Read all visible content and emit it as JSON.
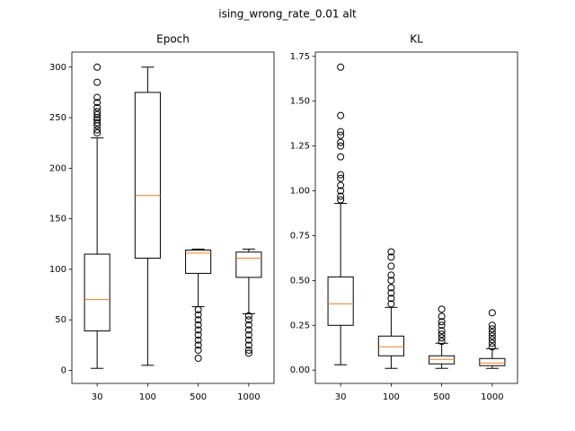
{
  "title": "ising_wrong_rate_0.01 alt",
  "chart_data": [
    {
      "type": "box",
      "title": "Epoch",
      "categories": [
        "30",
        "100",
        "500",
        "1000"
      ],
      "boxes": [
        {
          "whislo": 2,
          "q1": 39,
          "med": 70,
          "q3": 115,
          "whishi": 230,
          "fliers": [
            235,
            238,
            242,
            245,
            248,
            250,
            253,
            256,
            260,
            265,
            270,
            285,
            300
          ]
        },
        {
          "whislo": 5,
          "q1": 111,
          "med": 173,
          "q3": 275,
          "whishi": 300,
          "fliers": []
        },
        {
          "whislo": 63,
          "q1": 96,
          "med": 116,
          "q3": 119,
          "whishi": 120,
          "fliers": [
            12,
            20,
            25,
            30,
            35,
            40,
            45,
            50,
            55,
            60
          ]
        },
        {
          "whislo": 56,
          "q1": 92,
          "med": 111,
          "q3": 117,
          "whishi": 120,
          "fliers": [
            17,
            20,
            25,
            30,
            35,
            40,
            45,
            50,
            54
          ]
        }
      ],
      "ylim": [
        -12.9,
        314.9
      ],
      "yticks": [
        0,
        50,
        100,
        150,
        200,
        250,
        300
      ],
      "box_color": "#000000",
      "median_color": "#ff7f0e"
    },
    {
      "type": "box",
      "title": "KL",
      "categories": [
        "30",
        "100",
        "500",
        "1000"
      ],
      "boxes": [
        {
          "whislo": 0.03,
          "q1": 0.25,
          "med": 0.37,
          "q3": 0.52,
          "whishi": 0.93,
          "fliers": [
            0.95,
            0.97,
            1.0,
            1.03,
            1.07,
            1.09,
            1.19,
            1.25,
            1.27,
            1.31,
            1.33,
            1.42,
            1.69
          ]
        },
        {
          "whislo": 0.01,
          "q1": 0.08,
          "med": 0.13,
          "q3": 0.19,
          "whishi": 0.35,
          "fliers": [
            0.37,
            0.4,
            0.43,
            0.46,
            0.5,
            0.53,
            0.58,
            0.63,
            0.66
          ]
        },
        {
          "whislo": 0.01,
          "q1": 0.035,
          "med": 0.06,
          "q3": 0.08,
          "whishi": 0.15,
          "fliers": [
            0.16,
            0.18,
            0.2,
            0.22,
            0.25,
            0.27,
            0.3,
            0.34
          ]
        },
        {
          "whislo": 0.01,
          "q1": 0.025,
          "med": 0.04,
          "q3": 0.065,
          "whishi": 0.12,
          "fliers": [
            0.13,
            0.15,
            0.17,
            0.19,
            0.21,
            0.23,
            0.25,
            0.32
          ]
        }
      ],
      "ylim": [
        -0.074,
        1.774
      ],
      "yticks": [
        {
          "value": 0,
          "label": "0.00"
        },
        {
          "value": 0.25,
          "label": "0.25"
        },
        {
          "value": 0.5,
          "label": "0.50"
        },
        {
          "value": 0.75,
          "label": "0.75"
        },
        {
          "value": 1,
          "label": "1.00"
        },
        {
          "value": 1.25,
          "label": "1.25"
        },
        {
          "value": 1.5,
          "label": "1.50"
        },
        {
          "value": 1.75,
          "label": "1.75"
        }
      ],
      "box_color": "#000000",
      "median_color": "#ff7f0e"
    }
  ]
}
